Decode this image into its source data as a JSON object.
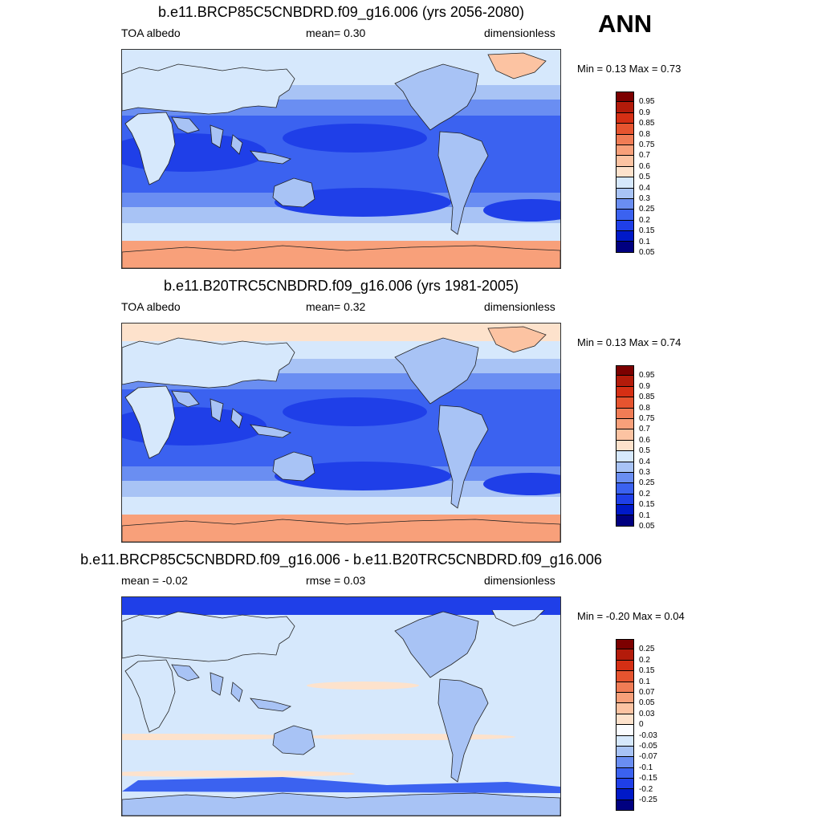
{
  "season": "ANN",
  "palettes": {
    "absolute": [
      "#000080",
      "#0019c8",
      "#1f3fe8",
      "#3b62f0",
      "#6a8ef2",
      "#a8c3f5",
      "#d6e8fc",
      "#fde2cc",
      "#fcc3a2",
      "#f8a07a",
      "#f07c55",
      "#e6542f",
      "#d52f14",
      "#b31b0a",
      "#7c0000"
    ],
    "difference": [
      "#000080",
      "#0019c8",
      "#1f3fe8",
      "#3b62f0",
      "#6a8ef2",
      "#a8c3f5",
      "#d6e8fc",
      "#fafcff",
      "#fde2cc",
      "#fcc3a2",
      "#f8a07a",
      "#f07c55",
      "#e6542f",
      "#d52f14",
      "#b31b0a",
      "#7c0000"
    ]
  },
  "panels": [
    {
      "title": "b.e11.BRCP85C5CNBDRD.f09_g16.006 (yrs 2056-2080)",
      "left_label": "TOA albedo",
      "mid_label": "mean=   0.30",
      "right_label": "dimensionless",
      "minmax": "Min =   0.13 Max =   0.73",
      "palette": "absolute",
      "levels": [
        "0.95",
        "0.9",
        "0.85",
        "0.8",
        "0.75",
        "0.7",
        "0.6",
        "0.5",
        "0.4",
        "0.3",
        "0.25",
        "0.2",
        "0.15",
        "0.1",
        "0.05"
      ],
      "field_colors": {
        "polar": "#f8a07a",
        "high_lat": "#d6e8fc",
        "storm": "#a8c3f5",
        "sub": "#6a8ef2",
        "trop": "#3b62f0",
        "deep": "#1f3fe8",
        "land": "#a8c3f5",
        "desert": "#d6e8fc",
        "ice": "#f8a07a",
        "arctic": "#d6e8fc",
        "greenland": "#fcc3a2"
      }
    },
    {
      "title": "b.e11.B20TRC5CNBDRD.f09_g16.006 (yrs 1981-2005)",
      "left_label": "TOA albedo",
      "mid_label": "mean=   0.32",
      "right_label": "dimensionless",
      "minmax": "Min =   0.13 Max =   0.74",
      "palette": "absolute",
      "levels": [
        "0.95",
        "0.9",
        "0.85",
        "0.8",
        "0.75",
        "0.7",
        "0.6",
        "0.5",
        "0.4",
        "0.3",
        "0.25",
        "0.2",
        "0.15",
        "0.1",
        "0.05"
      ],
      "field_colors": {
        "polar": "#f8a07a",
        "high_lat": "#d6e8fc",
        "storm": "#a8c3f5",
        "sub": "#6a8ef2",
        "trop": "#3b62f0",
        "deep": "#1f3fe8",
        "land": "#a8c3f5",
        "desert": "#d6e8fc",
        "ice": "#f8a07a",
        "arctic": "#fde2cc",
        "greenland": "#fcc3a2"
      }
    },
    {
      "title": "b.e11.BRCP85C5CNBDRD.f09_g16.006 - b.e11.B20TRC5CNBDRD.f09_g16.006",
      "left_label": "mean =  -0.02",
      "mid_label": "rmse =   0.03",
      "right_label": "dimensionless",
      "minmax": "Min =  -0.20 Max =   0.04",
      "palette": "difference",
      "levels": [
        "0.25",
        "0.2",
        "0.15",
        "0.1",
        "0.07",
        "0.05",
        "0.03",
        "0",
        "-0.03",
        "-0.05",
        "-0.07",
        "-0.1",
        "-0.15",
        "-0.2",
        "-0.25"
      ],
      "field_colors": {
        "polar": "#d6e8fc",
        "high_lat": "#d6e8fc",
        "storm": "#d6e8fc",
        "sub": "#d6e8fc",
        "trop": "#d6e8fc",
        "deep": "#d6e8fc",
        "land": "#a8c3f5",
        "desert": "#d6e8fc",
        "ice": "#a8c3f5",
        "arctic": "#1f3fe8",
        "greenland": "#d6e8fc",
        "bands": "#fde2cc"
      }
    }
  ]
}
